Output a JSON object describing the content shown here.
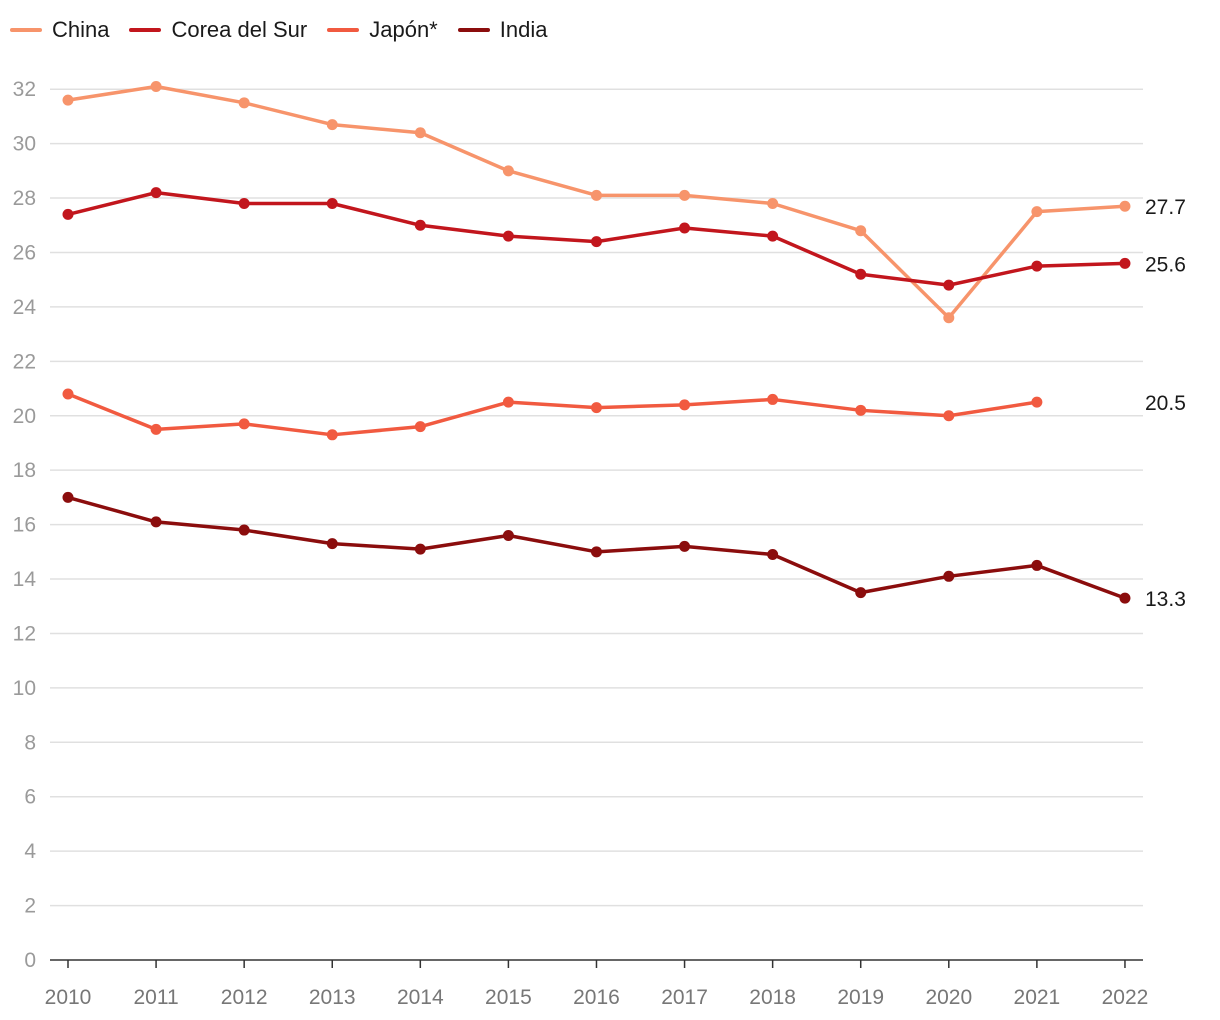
{
  "chart_data": {
    "type": "line",
    "x": [
      "2010",
      "2011",
      "2012",
      "2013",
      "2014",
      "2015",
      "2016",
      "2017",
      "2018",
      "2019",
      "2020",
      "2021",
      "2022"
    ],
    "ylim": [
      0,
      33
    ],
    "yticks": [
      0,
      2,
      4,
      6,
      8,
      10,
      12,
      14,
      16,
      18,
      20,
      22,
      24,
      26,
      28,
      30,
      32
    ],
    "grid": true,
    "legend_position": "top-left",
    "series": [
      {
        "name": "China",
        "color": "#f7946b",
        "values": [
          31.6,
          32.1,
          31.5,
          30.7,
          30.4,
          29.0,
          28.1,
          28.1,
          27.8,
          26.8,
          23.6,
          27.5,
          27.7
        ],
        "end_label": "27.7"
      },
      {
        "name": "Corea del Sur",
        "color": "#c2161d",
        "values": [
          27.4,
          28.2,
          27.8,
          27.8,
          27.0,
          26.6,
          26.4,
          26.9,
          26.6,
          25.2,
          24.8,
          25.5,
          25.6
        ],
        "end_label": "25.6"
      },
      {
        "name": "Japón*",
        "color": "#f15a40",
        "values": [
          20.8,
          19.5,
          19.7,
          19.3,
          19.6,
          20.5,
          20.3,
          20.4,
          20.6,
          20.2,
          20.0,
          20.5,
          null
        ],
        "end_label": "20.5"
      },
      {
        "name": "India",
        "color": "#8b0d0d",
        "values": [
          17.0,
          16.1,
          15.8,
          15.3,
          15.1,
          15.6,
          15.0,
          15.2,
          14.9,
          13.5,
          14.1,
          14.5,
          13.3
        ],
        "end_label": "13.3"
      }
    ]
  }
}
